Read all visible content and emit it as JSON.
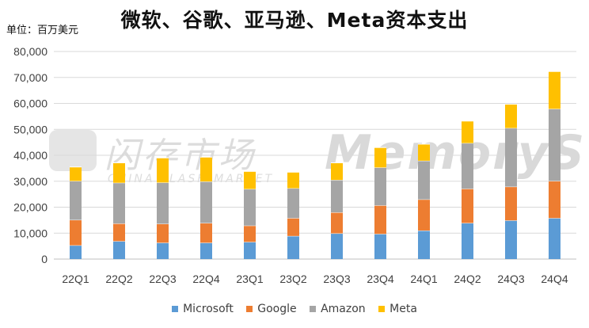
{
  "header": {
    "title": "微软、谷歌、亚马逊、Meta资本支出",
    "unit": "单位：百万美元"
  },
  "watermark": {
    "logo_text": "闪存市场",
    "logo_sub": "CHINA FLASH MARKET",
    "brand": "MemoryS"
  },
  "colors": {
    "Microsoft": "#5b9bd5",
    "Google": "#ed7d31",
    "Amazon": "#a5a5a5",
    "Meta": "#ffc000"
  },
  "chart_data": {
    "type": "bar",
    "stacked": true,
    "title": "微软、谷歌、亚马逊、Meta资本支出",
    "ylabel": "单位：百万美元",
    "ylim": [
      0,
      80000
    ],
    "yticks": [
      0,
      10000,
      20000,
      30000,
      40000,
      50000,
      60000,
      70000,
      80000
    ],
    "ytick_labels": [
      "0",
      "10,000",
      "20,000",
      "30,000",
      "40,000",
      "50,000",
      "60,000",
      "70,000",
      "80,000"
    ],
    "grid": true,
    "legend_position": "bottom",
    "categories": [
      "22Q1",
      "22Q2",
      "22Q3",
      "22Q4",
      "23Q1",
      "23Q2",
      "23Q3",
      "23Q4",
      "24Q1",
      "24Q2",
      "24Q3",
      "24Q4"
    ],
    "series": [
      {
        "name": "Microsoft",
        "values": [
          5300,
          6900,
          6300,
          6300,
          6600,
          8900,
          9900,
          9700,
          11000,
          13900,
          14900,
          15800
        ]
      },
      {
        "name": "Google",
        "values": [
          9800,
          6800,
          7300,
          7600,
          6300,
          6900,
          8100,
          11000,
          12000,
          13200,
          13000,
          14300
        ]
      },
      {
        "name": "Amazon",
        "values": [
          15000,
          15700,
          15900,
          16000,
          14100,
          11500,
          12500,
          14600,
          14900,
          17600,
          22600,
          27800
        ]
      },
      {
        "name": "Meta",
        "values": [
          5400,
          7700,
          9500,
          9400,
          6800,
          6200,
          6600,
          7700,
          6400,
          8500,
          9200,
          14400
        ]
      }
    ]
  }
}
